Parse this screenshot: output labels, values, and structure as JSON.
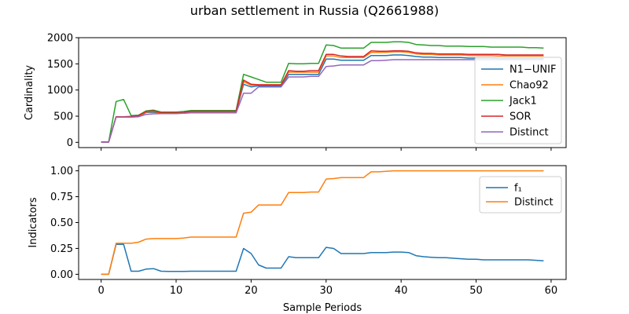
{
  "figure": {
    "title": "urban settlement in Russia (Q2661988)",
    "xlabel": "Sample Periods"
  },
  "chart_data": [
    {
      "type": "line",
      "ylabel": "Cardinality",
      "xlim": [
        -3,
        62
      ],
      "ylim": [
        -100,
        2000
      ],
      "xticks": [
        0,
        10,
        20,
        30,
        40,
        50,
        60
      ],
      "yticks": [
        0,
        500,
        1000,
        1500,
        2000
      ],
      "legend_position": "center-right",
      "series": [
        {
          "name": "N1−UNIF",
          "color": "#1f77b4",
          "x": [
            0,
            1,
            2,
            3,
            4,
            5,
            6,
            7,
            8,
            9,
            10,
            11,
            12,
            13,
            14,
            15,
            16,
            17,
            18,
            19,
            20,
            21,
            22,
            23,
            24,
            25,
            26,
            27,
            28,
            29,
            30,
            31,
            32,
            33,
            34,
            35,
            36,
            37,
            38,
            39,
            40,
            41,
            42,
            43,
            44,
            45,
            46,
            47,
            48,
            49,
            50,
            51,
            52,
            53,
            54,
            55,
            56,
            57,
            58,
            59
          ],
          "y": [
            5,
            5,
            490,
            490,
            490,
            495,
            570,
            575,
            555,
            555,
            555,
            555,
            575,
            575,
            575,
            575,
            575,
            575,
            575,
            1110,
            1060,
            1080,
            1080,
            1080,
            1080,
            1300,
            1300,
            1300,
            1300,
            1300,
            1590,
            1590,
            1570,
            1570,
            1570,
            1570,
            1660,
            1660,
            1660,
            1670,
            1670,
            1660,
            1640,
            1630,
            1630,
            1620,
            1620,
            1620,
            1620,
            1610,
            1610,
            1610,
            1610,
            1600,
            1600,
            1600,
            1600,
            1600,
            1600,
            1600
          ]
        },
        {
          "name": "Chao92",
          "color": "#ff7f0e",
          "x": [
            0,
            1,
            2,
            3,
            4,
            5,
            6,
            7,
            8,
            9,
            10,
            11,
            12,
            13,
            14,
            15,
            16,
            17,
            18,
            19,
            20,
            21,
            22,
            23,
            24,
            25,
            26,
            27,
            28,
            29,
            30,
            31,
            32,
            33,
            34,
            35,
            36,
            37,
            38,
            39,
            40,
            41,
            42,
            43,
            44,
            45,
            46,
            47,
            48,
            49,
            50,
            51,
            52,
            53,
            54,
            55,
            56,
            57,
            58,
            59
          ],
          "y": [
            5,
            5,
            490,
            490,
            490,
            500,
            580,
            590,
            560,
            560,
            560,
            560,
            580,
            580,
            580,
            580,
            580,
            580,
            580,
            1160,
            1090,
            1100,
            1100,
            1100,
            1100,
            1340,
            1340,
            1340,
            1340,
            1340,
            1650,
            1650,
            1620,
            1620,
            1620,
            1620,
            1720,
            1720,
            1720,
            1730,
            1730,
            1720,
            1690,
            1680,
            1680,
            1670,
            1670,
            1670,
            1670,
            1660,
            1660,
            1660,
            1660,
            1650,
            1650,
            1650,
            1650,
            1650,
            1650,
            1650
          ]
        },
        {
          "name": "Jack1",
          "color": "#2ca02c",
          "x": [
            0,
            1,
            2,
            3,
            4,
            5,
            6,
            7,
            8,
            9,
            10,
            11,
            12,
            13,
            14,
            15,
            16,
            17,
            18,
            19,
            20,
            21,
            22,
            23,
            24,
            25,
            26,
            27,
            28,
            29,
            30,
            31,
            32,
            33,
            34,
            35,
            36,
            37,
            38,
            39,
            40,
            41,
            42,
            43,
            44,
            45,
            46,
            47,
            48,
            49,
            50,
            51,
            52,
            53,
            54,
            55,
            56,
            57,
            58,
            59
          ],
          "y": [
            10,
            10,
            780,
            820,
            510,
            520,
            600,
            615,
            580,
            580,
            580,
            590,
            610,
            610,
            610,
            610,
            610,
            610,
            610,
            1300,
            1250,
            1200,
            1150,
            1150,
            1150,
            1510,
            1500,
            1500,
            1510,
            1510,
            1860,
            1850,
            1800,
            1800,
            1800,
            1800,
            1910,
            1910,
            1910,
            1920,
            1920,
            1910,
            1870,
            1860,
            1850,
            1850,
            1840,
            1840,
            1840,
            1830,
            1830,
            1830,
            1820,
            1820,
            1820,
            1820,
            1820,
            1810,
            1810,
            1800
          ]
        },
        {
          "name": "SOR",
          "color": "#d62728",
          "x": [
            0,
            1,
            2,
            3,
            4,
            5,
            6,
            7,
            8,
            9,
            10,
            11,
            12,
            13,
            14,
            15,
            16,
            17,
            18,
            19,
            20,
            21,
            22,
            23,
            24,
            25,
            26,
            27,
            28,
            29,
            30,
            31,
            32,
            33,
            34,
            35,
            36,
            37,
            38,
            39,
            40,
            41,
            42,
            43,
            44,
            45,
            46,
            47,
            48,
            49,
            50,
            51,
            52,
            53,
            54,
            55,
            56,
            57,
            58,
            59
          ],
          "y": [
            5,
            5,
            490,
            490,
            495,
            510,
            590,
            600,
            565,
            565,
            565,
            570,
            595,
            595,
            595,
            595,
            595,
            595,
            595,
            1190,
            1110,
            1100,
            1100,
            1100,
            1100,
            1370,
            1360,
            1360,
            1370,
            1370,
            1680,
            1680,
            1650,
            1640,
            1640,
            1640,
            1750,
            1740,
            1740,
            1750,
            1750,
            1740,
            1710,
            1700,
            1700,
            1690,
            1690,
            1690,
            1690,
            1680,
            1680,
            1680,
            1680,
            1680,
            1670,
            1670,
            1670,
            1670,
            1670,
            1670
          ]
        },
        {
          "name": "Distinct",
          "color": "#9467bd",
          "x": [
            0,
            1,
            2,
            3,
            4,
            5,
            6,
            7,
            8,
            9,
            10,
            11,
            12,
            13,
            14,
            15,
            16,
            17,
            18,
            19,
            20,
            21,
            22,
            23,
            24,
            25,
            26,
            27,
            28,
            29,
            30,
            31,
            32,
            33,
            34,
            35,
            36,
            37,
            38,
            39,
            40,
            41,
            42,
            43,
            44,
            45,
            46,
            47,
            48,
            49,
            50,
            51,
            52,
            53,
            54,
            55,
            56,
            57,
            58,
            59
          ],
          "y": [
            5,
            5,
            480,
            480,
            480,
            490,
            535,
            545,
            550,
            550,
            550,
            555,
            565,
            565,
            565,
            565,
            565,
            565,
            565,
            940,
            940,
            1060,
            1060,
            1060,
            1060,
            1250,
            1250,
            1250,
            1260,
            1260,
            1450,
            1460,
            1480,
            1480,
            1480,
            1480,
            1560,
            1560,
            1570,
            1580,
            1580,
            1580,
            1580,
            1580,
            1580,
            1580,
            1580,
            1580,
            1580,
            1580,
            1580,
            1580,
            1580,
            1580,
            1580,
            1580,
            1580,
            1580,
            1580,
            1580
          ]
        }
      ]
    },
    {
      "type": "line",
      "ylabel": "Indicators",
      "xlim": [
        -3,
        62
      ],
      "ylim": [
        -0.05,
        1.05
      ],
      "xticks": [
        0,
        10,
        20,
        30,
        40,
        50,
        60
      ],
      "yticks": [
        0.0,
        0.25,
        0.5,
        0.75,
        1.0
      ],
      "ytick_labels": [
        "0.00",
        "0.25",
        "0.50",
        "0.75",
        "1.00"
      ],
      "legend_position": "top-right",
      "series": [
        {
          "name": "f₁",
          "color": "#1f77b4",
          "x": [
            0,
            1,
            2,
            3,
            4,
            5,
            6,
            7,
            8,
            9,
            10,
            11,
            12,
            13,
            14,
            15,
            16,
            17,
            18,
            19,
            20,
            21,
            22,
            23,
            24,
            25,
            26,
            27,
            28,
            29,
            30,
            31,
            32,
            33,
            34,
            35,
            36,
            37,
            38,
            39,
            40,
            41,
            42,
            43,
            44,
            45,
            46,
            47,
            48,
            49,
            50,
            51,
            52,
            53,
            54,
            55,
            56,
            57,
            58,
            59
          ],
          "y": [
            0.0,
            0.0,
            0.29,
            0.29,
            0.03,
            0.03,
            0.05,
            0.055,
            0.03,
            0.028,
            0.028,
            0.028,
            0.03,
            0.03,
            0.03,
            0.03,
            0.03,
            0.03,
            0.03,
            0.25,
            0.2,
            0.09,
            0.06,
            0.06,
            0.06,
            0.17,
            0.16,
            0.16,
            0.16,
            0.16,
            0.26,
            0.25,
            0.2,
            0.2,
            0.2,
            0.2,
            0.21,
            0.21,
            0.21,
            0.215,
            0.215,
            0.21,
            0.18,
            0.17,
            0.165,
            0.16,
            0.16,
            0.155,
            0.15,
            0.145,
            0.145,
            0.14,
            0.14,
            0.14,
            0.14,
            0.14,
            0.14,
            0.14,
            0.135,
            0.13
          ]
        },
        {
          "name": "Distinct",
          "color": "#ff7f0e",
          "x": [
            0,
            1,
            2,
            3,
            4,
            5,
            6,
            7,
            8,
            9,
            10,
            11,
            12,
            13,
            14,
            15,
            16,
            17,
            18,
            19,
            20,
            21,
            22,
            23,
            24,
            25,
            26,
            27,
            28,
            29,
            30,
            31,
            32,
            33,
            34,
            35,
            36,
            37,
            38,
            39,
            40,
            41,
            42,
            43,
            44,
            45,
            46,
            47,
            48,
            49,
            50,
            51,
            52,
            53,
            54,
            55,
            56,
            57,
            58,
            59
          ],
          "y": [
            0.0,
            0.0,
            0.3,
            0.3,
            0.3,
            0.31,
            0.34,
            0.345,
            0.345,
            0.345,
            0.345,
            0.35,
            0.36,
            0.36,
            0.36,
            0.36,
            0.36,
            0.36,
            0.36,
            0.59,
            0.6,
            0.67,
            0.67,
            0.67,
            0.67,
            0.79,
            0.79,
            0.79,
            0.795,
            0.795,
            0.92,
            0.925,
            0.935,
            0.935,
            0.935,
            0.935,
            0.99,
            0.99,
            0.995,
            1.0,
            1.0,
            1.0,
            1.0,
            1.0,
            1.0,
            1.0,
            1.0,
            1.0,
            1.0,
            1.0,
            1.0,
            1.0,
            1.0,
            1.0,
            1.0,
            1.0,
            1.0,
            1.0,
            1.0,
            1.0
          ]
        }
      ]
    }
  ]
}
